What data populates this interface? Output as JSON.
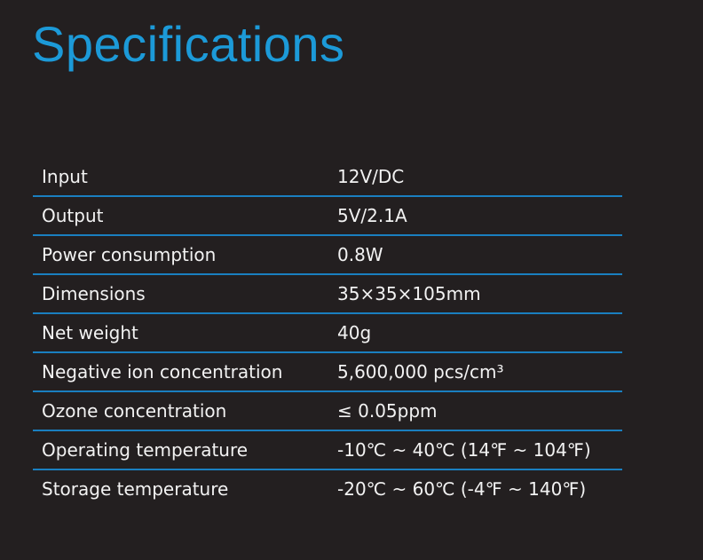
{
  "header": {
    "title": "Specifications"
  },
  "table": {
    "rows": [
      [
        "Input",
        "12V/DC"
      ],
      [
        "Output",
        "5V/2.1A"
      ],
      [
        "Power consumption",
        "0.8W"
      ],
      [
        "Dimensions",
        "35×35×105mm"
      ],
      [
        "Net weight",
        "40g"
      ],
      [
        "Negative ion concentration",
        "5,600,000 pcs/cm³"
      ],
      [
        "Ozone concentration",
        "≤ 0.05ppm"
      ],
      [
        "Operating temperature",
        "-10℃ ~ 40℃ (14℉ ~ 104℉)"
      ],
      [
        "Storage temperature",
        "-20℃ ~ 60℃ (-4℉ ~ 140℉)"
      ]
    ]
  }
}
